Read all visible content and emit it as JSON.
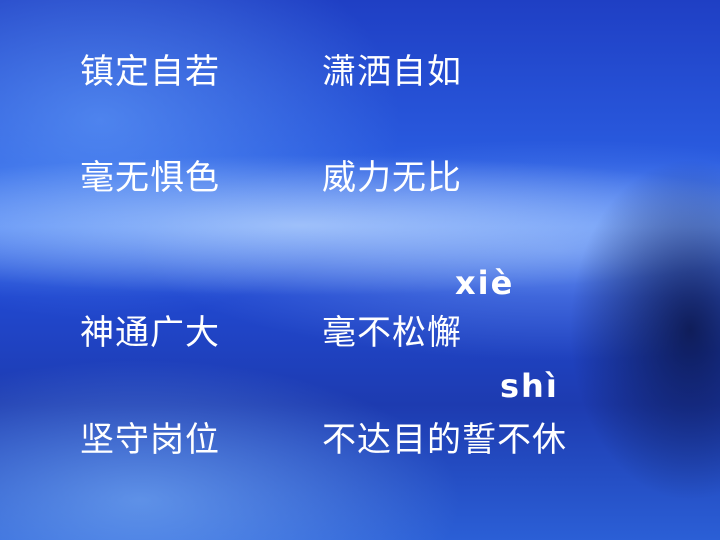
{
  "left_column": [
    "镇定自若",
    "毫无惧色",
    "神通广大",
    "坚守岗位"
  ],
  "right_column": [
    "潇洒自如",
    "威力无比",
    "毫不松懈",
    "不达目的誓不休"
  ],
  "pinyin": {
    "xie": "xiè",
    "shi": "shì"
  }
}
